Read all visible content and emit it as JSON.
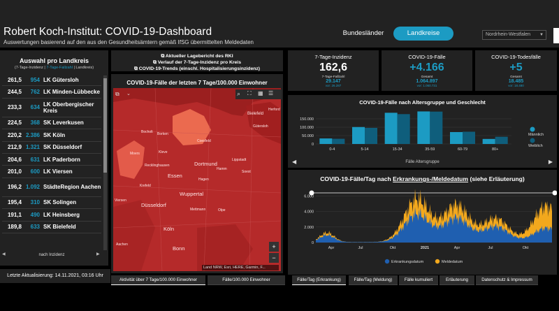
{
  "header": {
    "title": "Robert Koch-Institut: COVID-19-Dashboard",
    "subtitle": "Auswertungen basierend auf den aus den Gesundheitsämtern gemäß IfSG übermittelten Meldedaten",
    "btn_bundeslaender": "Bundesländer",
    "btn_landkreise": "Landkreise",
    "state_select": "Nordrhein-Westfalen"
  },
  "left_panel": {
    "title": "Auswahl pro Landkreis",
    "subtitle_prefix": "(7-Tage-Inzidenz | ",
    "subtitle_colored": "7-Tage-Fallzahl",
    "subtitle_suffix": " | Landkreis)",
    "rows": [
      {
        "inz": "261,5",
        "cnt": "954",
        "name": "LK Gütersloh"
      },
      {
        "inz": "244,5",
        "cnt": "762",
        "name": "LK Minden-Lübbecke"
      },
      {
        "inz": "233,3",
        "cnt": "634",
        "name": "LK Oberbergischer Kreis"
      },
      {
        "inz": "224,5",
        "cnt": "368",
        "name": "SK Leverkusen"
      },
      {
        "inz": "220,2",
        "cnt": "2.386",
        "name": "SK Köln"
      },
      {
        "inz": "212,9",
        "cnt": "1.321",
        "name": "SK Düsseldorf"
      },
      {
        "inz": "204,6",
        "cnt": "631",
        "name": "LK Paderborn"
      },
      {
        "inz": "201,0",
        "cnt": "600",
        "name": "LK Viersen"
      },
      {
        "inz": "196,2",
        "cnt": "1.092",
        "name": "StädteRegion Aachen"
      },
      {
        "inz": "195,4",
        "cnt": "310",
        "name": "SK Solingen"
      },
      {
        "inz": "191,1",
        "cnt": "490",
        "name": "LK Heinsberg"
      },
      {
        "inz": "189,8",
        "cnt": "633",
        "name": "SK Bielefeld"
      }
    ],
    "next_label": "nach Inzidenz",
    "last_update": "Letzte Aktualisierung: 14.11.2021, 03:16 Uhr"
  },
  "links": [
    "Aktueller Lagebericht des RKI",
    "Verlauf der 7-Tage-Inzidenz pro Kreis",
    "COVID-19-Trends (einschl. Hospitalisierungsinzidenz)"
  ],
  "map": {
    "title": "COVID-19-Fälle der letzten 7 Tage/100.000 Einwohner",
    "attribution": "Land NRW, Esri, HERE, Garmin, F...",
    "labels": [
      "Bielefeld",
      "Gütersloh",
      "Bocholt",
      "Borken",
      "Coesfeld",
      "Herford",
      "Moers",
      "Essen",
      "Dortmund",
      "Kleve",
      "Hamm",
      "Soest",
      "Recklinghausen",
      "Hagen",
      "Krefeld",
      "Wuppertal",
      "Düsseldorf",
      "Viersen",
      "Köln",
      "Bonn",
      "Lippstadt",
      "Mettmann",
      "Aachen",
      "Olpe"
    ],
    "tabs": [
      "Aktivität über 7 Tage/100.000 Einwohner",
      "Fälle/100.000 Einwohner"
    ]
  },
  "kpis": [
    {
      "title": "7-Tage-Inzidenz",
      "value": "162,6",
      "sub1": "7-Tage-Fallzahl",
      "sub2": "29.147",
      "sub3": "vor: 26.287"
    },
    {
      "title": "COVID-19-Fälle",
      "value": "+4.166",
      "sub1": "Gesamt",
      "sub2": "1.064.897",
      "sub3": "vor: 1.060.731"
    },
    {
      "title": "COVID-19-Todesfälle",
      "value": "+5",
      "sub1": "Gesamt",
      "sub2": "18.485",
      "sub3": "vor: 18.480"
    }
  ],
  "age_chart": {
    "title": "COVID-19-Fälle nach Altersgruppe und Geschlecht",
    "xlabel": "Fälle Altersgruppe",
    "legend": [
      "Männlich",
      "Weiblich"
    ],
    "chart_data": {
      "type": "bar",
      "categories": [
        "0-4",
        "5-14",
        "15-34",
        "35-59",
        "60-79",
        "80+"
      ],
      "series": [
        {
          "name": "Männlich",
          "values": [
            33000,
            101000,
            186000,
            194000,
            71000,
            30000
          ]
        },
        {
          "name": "Weiblich",
          "values": [
            31000,
            96000,
            178000,
            193000,
            73000,
            43000
          ]
        }
      ],
      "yticks": [
        "0",
        "50.000",
        "100.000",
        "150.000"
      ],
      "ylim": [
        0,
        200000
      ]
    }
  },
  "daily_chart": {
    "title_prefix": "COVID-19-Fälle/Tag nach ",
    "title_underlined": "Erkrankungs-/Meldedatum",
    "title_suffix": " (siehe Erläuterung)",
    "legend": [
      "Erkrankungsdatum",
      "Meldedatum"
    ],
    "chart_data": {
      "type": "area",
      "x_labels": [
        "Apr",
        "Jul",
        "Okt",
        "2021",
        "Apr",
        "Jul",
        "Okt"
      ],
      "yticks": [
        "0",
        "2.000",
        "4.000",
        "6.000"
      ],
      "ylim": [
        0,
        6500
      ],
      "series": [
        {
          "name": "Meldedatum",
          "peaks": [
            {
              "month": "Apr 2020",
              "value": 1200
            },
            {
              "month": "Dez 2020",
              "value": 5500
            },
            {
              "month": "Apr 2021",
              "value": 4700
            },
            {
              "month": "Aug 2021",
              "value": 3000
            },
            {
              "month": "Nov 2021",
              "value": 4600
            }
          ]
        },
        {
          "name": "Erkrankungsdatum",
          "peaks": [
            {
              "month": "Apr 2020",
              "value": 900
            },
            {
              "month": "Dez 2020",
              "value": 3600
            },
            {
              "month": "Apr 2021",
              "value": 3100
            },
            {
              "month": "Aug 2021",
              "value": 2000
            },
            {
              "month": "Nov 2021",
              "value": 1800
            }
          ]
        }
      ]
    }
  },
  "bottom_tabs": [
    "Fälle/Tag (Erkrankung)",
    "Fälle/Tag (Meldung)",
    "Fälle kumuliert",
    "Erläuterung",
    "Datenschutz & Impressum"
  ]
}
